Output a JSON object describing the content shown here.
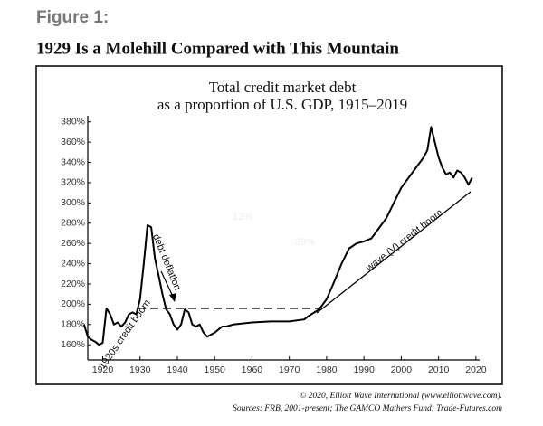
{
  "chart_data": {
    "type": "line",
    "figure_label": "Figure 1:",
    "headline": "1929 Is a Molehill Compared with This Mountain",
    "title_lines": [
      "Total credit market debt",
      "as a proportion of U.S. GDP, 1915–2019"
    ],
    "footer_lines": [
      "© 2020, Elliott Wave International (www.elliottwave.com).",
      "Sources: FRB, 2001-present; The GAMCO Mathers Fund; Trade-Futures.com"
    ],
    "annotations": [
      "1920s credit boom",
      "debt deflation",
      "wave (V) credit boom",
      "13%",
      "29%"
    ],
    "x": [
      1915,
      1916,
      1917,
      1918,
      1919,
      1920,
      1921,
      1922,
      1923,
      1924,
      1925,
      1926,
      1927,
      1928,
      1929,
      1930,
      1931,
      1932,
      1933,
      1934,
      1935,
      1936,
      1937,
      1938,
      1939,
      1940,
      1941,
      1942,
      1943,
      1944,
      1945,
      1946,
      1947,
      1948,
      1949,
      1950,
      1951,
      1952,
      1953,
      1955,
      1960,
      1965,
      1970,
      1974,
      1975,
      1978,
      1980,
      1982,
      1984,
      1986,
      1988,
      1990,
      1992,
      1994,
      1996,
      1998,
      2000,
      2002,
      2004,
      2006,
      2007,
      2008,
      2009,
      2010,
      2011,
      2012,
      2013,
      2014,
      2015,
      2016,
      2017,
      2018,
      2019
    ],
    "series": [
      {
        "name": "Total credit market debt / GDP",
        "color": "#000000",
        "values": [
          180,
          168,
          165,
          163,
          160,
          162,
          196,
          190,
          180,
          182,
          178,
          182,
          190,
          192,
          190,
          205,
          240,
          278,
          276,
          245,
          228,
          210,
          195,
          190,
          180,
          175,
          180,
          195,
          192,
          180,
          178,
          180,
          172,
          168,
          170,
          172,
          175,
          178,
          178,
          180,
          182,
          183,
          183,
          185,
          188,
          195,
          205,
          222,
          240,
          255,
          260,
          262,
          265,
          275,
          285,
          300,
          315,
          325,
          335,
          345,
          352,
          375,
          360,
          345,
          335,
          328,
          330,
          325,
          332,
          330,
          325,
          318,
          325
        ]
      }
    ],
    "xlim": [
      1916,
      2021
    ],
    "xticks": [
      1920,
      1930,
      1940,
      1950,
      1960,
      1970,
      1980,
      1990,
      2000,
      2010,
      2020
    ],
    "ylim": [
      145,
      386
    ],
    "yticks": [
      {
        "value": 160,
        "label": "160%"
      },
      {
        "value": 180,
        "label": "180%"
      },
      {
        "value": 200,
        "label": "200%"
      },
      {
        "value": 220,
        "label": "220%"
      },
      {
        "value": 240,
        "label": "240%"
      },
      {
        "value": 260,
        "label": "260%"
      },
      {
        "value": 280,
        "label": "280%"
      },
      {
        "value": 300,
        "label": "300%"
      },
      {
        "value": 320,
        "label": "320%"
      },
      {
        "value": 340,
        "label": "340%"
      },
      {
        "value": 360,
        "label": "360%"
      },
      {
        "value": 380,
        "label": "380%"
      }
    ]
  }
}
